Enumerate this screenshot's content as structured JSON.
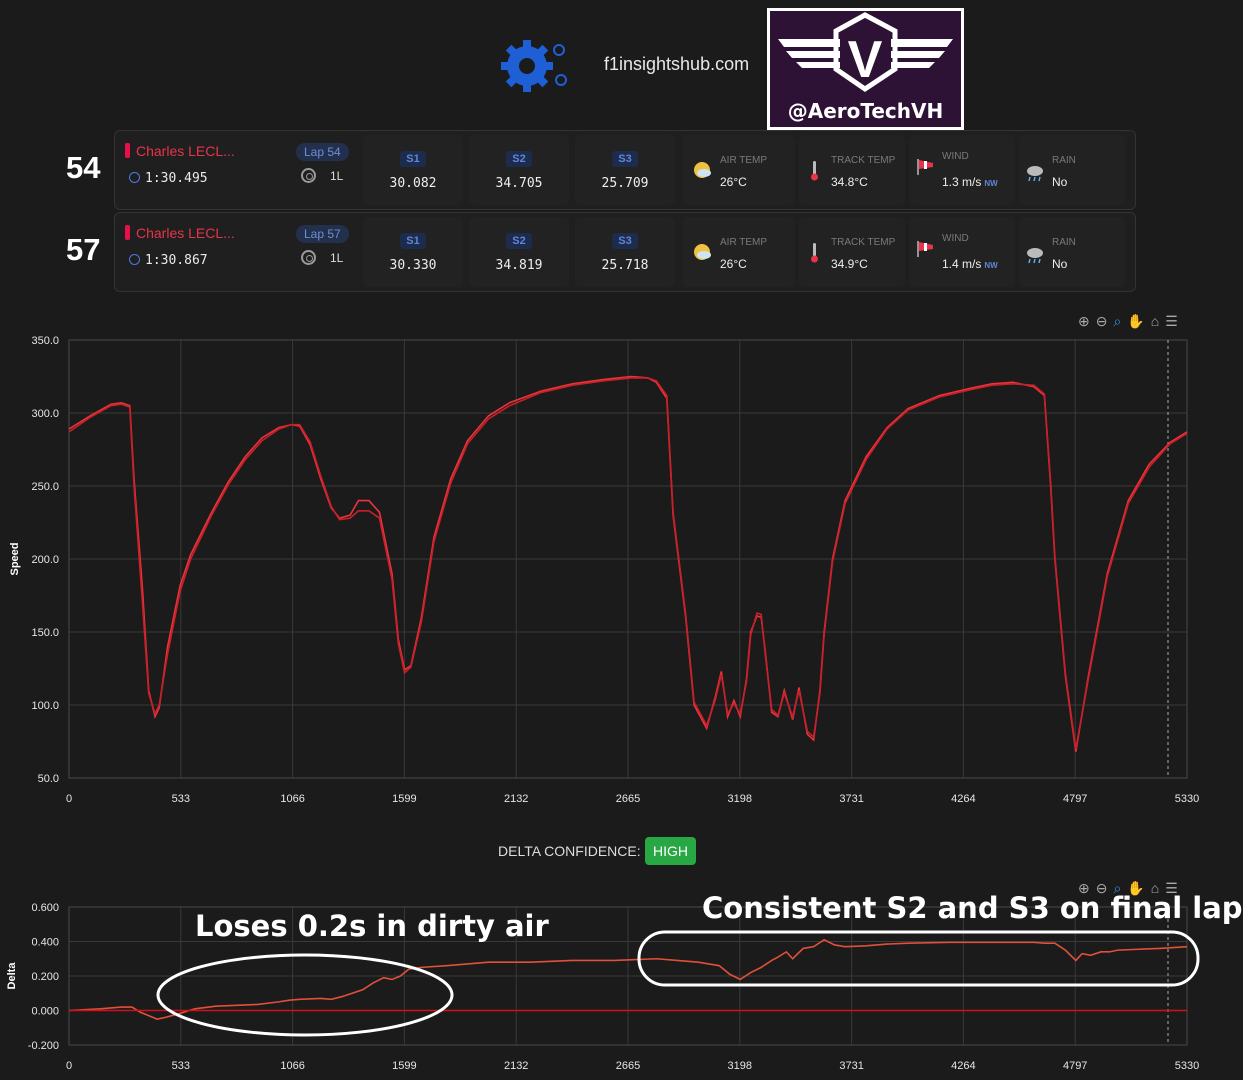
{
  "header": {
    "site": "f1insightshub.com",
    "brand_handle": "@AeroTechVH",
    "brand_letter": "V"
  },
  "laps": [
    {
      "lap_number": "54",
      "driver": "Charles LECL...",
      "lap_time": "1:30.495",
      "lap_badge": "Lap 54",
      "tyre": "1L",
      "sectors": [
        {
          "label": "S1",
          "time": "30.082"
        },
        {
          "label": "S2",
          "time": "34.705"
        },
        {
          "label": "S3",
          "time": "25.709"
        }
      ],
      "weather": {
        "air_temp_label": "AIR TEMP",
        "air_temp": "26°C",
        "track_temp_label": "TRACK TEMP",
        "track_temp": "34.8°C",
        "wind_label": "WIND",
        "wind": "1.3 m/s",
        "wind_dir": "NW",
        "rain_label": "RAIN",
        "rain": "No"
      }
    },
    {
      "lap_number": "57",
      "driver": "Charles LECL...",
      "lap_time": "1:30.867",
      "lap_badge": "Lap 57",
      "tyre": "1L",
      "sectors": [
        {
          "label": "S1",
          "time": "30.330"
        },
        {
          "label": "S2",
          "time": "34.819"
        },
        {
          "label": "S3",
          "time": "25.718"
        }
      ],
      "weather": {
        "air_temp_label": "AIR TEMP",
        "air_temp": "26°C",
        "track_temp_label": "TRACK TEMP",
        "track_temp": "34.9°C",
        "wind_label": "WIND",
        "wind": "1.4 m/s",
        "wind_dir": "NW",
        "rain_label": "RAIN",
        "rain": "No"
      }
    }
  ],
  "delta_confidence": {
    "label": "DELTA CONFIDENCE:",
    "value": "HIGH"
  },
  "annotations": {
    "left": "Loses 0.2s in dirty air",
    "right": "Consistent S2 and S3 on final lap"
  },
  "colors": {
    "line": "#e8343a",
    "confidence": "#28a745",
    "accent": "#5f86d8"
  },
  "chart_data": [
    {
      "type": "line",
      "ylabel": "Speed",
      "xlabel": "",
      "xlim": [
        0,
        5330
      ],
      "ylim": [
        50,
        350
      ],
      "xticks": [
        "0",
        "533",
        "1066",
        "1599",
        "2132",
        "2665",
        "3198",
        "3731",
        "4264",
        "4797",
        "5330"
      ],
      "yticks": [
        "50.0",
        "100.0",
        "150.0",
        "200.0",
        "250.0",
        "300.0",
        "350.0"
      ],
      "grid": true,
      "series": [
        {
          "x": [
            0,
            100,
            200,
            250,
            290,
            310,
            350,
            380,
            410,
            430,
            470,
            530,
            580,
            680,
            760,
            840,
            920,
            1000,
            1060,
            1100,
            1150,
            1200,
            1250,
            1290,
            1340,
            1380,
            1430,
            1480,
            1540,
            1570,
            1600,
            1630,
            1680,
            1740,
            1820,
            1900,
            2000,
            2100,
            2250,
            2400,
            2550,
            2680,
            2760,
            2800,
            2850,
            2880,
            2940,
            2980,
            3040,
            3080,
            3110,
            3140,
            3170,
            3200,
            3230,
            3250,
            3280,
            3300,
            3320,
            3350,
            3380,
            3410,
            3450,
            3480,
            3520,
            3550,
            3580,
            3600,
            3640,
            3700,
            3800,
            3900,
            4000,
            4150,
            4300,
            4400,
            4500,
            4600,
            4650,
            4680,
            4700,
            4750,
            4800,
            4860,
            4950,
            5050,
            5150,
            5250,
            5330
          ],
          "y": [
            289,
            298,
            306,
            307,
            305,
            255,
            180,
            110,
            92,
            98,
            140,
            182,
            203,
            232,
            253,
            270,
            283,
            290,
            292,
            291,
            278,
            255,
            235,
            228,
            230,
            240,
            240,
            232,
            190,
            145,
            124,
            127,
            160,
            215,
            255,
            281,
            298,
            307,
            315,
            320,
            323,
            325,
            324,
            321,
            310,
            230,
            160,
            100,
            84,
            105,
            123,
            92,
            103,
            92,
            118,
            150,
            161,
            160,
            136,
            95,
            92,
            110,
            90,
            112,
            80,
            76,
            110,
            150,
            200,
            240,
            270,
            290,
            303,
            312,
            317,
            320,
            321,
            318,
            312,
            250,
            200,
            120,
            68,
            120,
            190,
            240,
            265,
            280,
            287
          ]
        },
        {
          "x": [
            0,
            100,
            200,
            250,
            290,
            310,
            350,
            380,
            410,
            430,
            470,
            530,
            580,
            680,
            760,
            840,
            920,
            1000,
            1060,
            1100,
            1150,
            1200,
            1250,
            1290,
            1340,
            1380,
            1430,
            1480,
            1540,
            1570,
            1600,
            1630,
            1680,
            1740,
            1820,
            1900,
            2000,
            2100,
            2250,
            2400,
            2550,
            2680,
            2760,
            2800,
            2850,
            2880,
            2940,
            2980,
            3040,
            3080,
            3110,
            3140,
            3170,
            3200,
            3230,
            3250,
            3280,
            3300,
            3320,
            3350,
            3380,
            3410,
            3450,
            3480,
            3520,
            3550,
            3580,
            3600,
            3640,
            3700,
            3800,
            3900,
            4000,
            4150,
            4300,
            4400,
            4500,
            4600,
            4650,
            4680,
            4700,
            4750,
            4800,
            4860,
            4950,
            5050,
            5150,
            5250,
            5330
          ],
          "y": [
            287,
            297,
            305,
            306,
            304,
            250,
            170,
            108,
            94,
            100,
            135,
            178,
            200,
            230,
            251,
            268,
            281,
            289,
            292,
            292,
            280,
            257,
            236,
            227,
            228,
            233,
            233,
            228,
            186,
            142,
            122,
            126,
            157,
            212,
            252,
            279,
            296,
            305,
            314,
            319,
            322,
            324,
            324,
            322,
            312,
            232,
            162,
            102,
            86,
            103,
            121,
            94,
            101,
            94,
            116,
            148,
            163,
            162,
            134,
            97,
            93,
            108,
            92,
            110,
            82,
            78,
            108,
            148,
            198,
            238,
            268,
            289,
            302,
            311,
            316,
            319,
            320,
            319,
            313,
            252,
            202,
            122,
            70,
            118,
            188,
            238,
            263,
            279,
            286
          ]
        }
      ]
    },
    {
      "type": "line",
      "ylabel": "Delta",
      "xlabel": "",
      "xlim": [
        0,
        5330
      ],
      "ylim": [
        -0.2,
        0.6
      ],
      "xticks": [
        "0",
        "533",
        "1066",
        "1599",
        "2132",
        "2665",
        "3198",
        "3731",
        "4264",
        "4797",
        "5330"
      ],
      "yticks": [
        "-0.200",
        "0.000",
        "0.200",
        "0.400",
        "0.600"
      ],
      "grid": true,
      "series": [
        {
          "x": [
            0,
            150,
            250,
            300,
            340,
            380,
            420,
            460,
            520,
            600,
            700,
            800,
            900,
            1000,
            1050,
            1100,
            1200,
            1250,
            1300,
            1400,
            1450,
            1500,
            1540,
            1580,
            1620,
            1680,
            1800,
            2000,
            2200,
            2400,
            2600,
            2800,
            2900,
            3000,
            3050,
            3100,
            3150,
            3200,
            3250,
            3300,
            3350,
            3380,
            3420,
            3450,
            3500,
            3550,
            3600,
            3650,
            3700,
            3800,
            3900,
            4000,
            4200,
            4400,
            4600,
            4650,
            4700,
            4750,
            4800,
            4830,
            4870,
            4920,
            4960,
            5000,
            5100,
            5200,
            5330
          ],
          "y": [
            0,
            0.01,
            0.02,
            0.02,
            -0.01,
            -0.03,
            -0.05,
            -0.04,
            -0.02,
            0.01,
            0.025,
            0.03,
            0.035,
            0.05,
            0.06,
            0.065,
            0.07,
            0.065,
            0.08,
            0.12,
            0.16,
            0.19,
            0.18,
            0.2,
            0.24,
            0.25,
            0.26,
            0.28,
            0.28,
            0.29,
            0.29,
            0.3,
            0.29,
            0.28,
            0.27,
            0.26,
            0.21,
            0.18,
            0.22,
            0.25,
            0.29,
            0.31,
            0.34,
            0.3,
            0.36,
            0.37,
            0.41,
            0.38,
            0.37,
            0.375,
            0.385,
            0.39,
            0.395,
            0.395,
            0.395,
            0.39,
            0.39,
            0.35,
            0.29,
            0.33,
            0.32,
            0.34,
            0.34,
            0.35,
            0.355,
            0.36,
            0.37
          ]
        },
        {
          "x": [
            0,
            5330
          ],
          "y": [
            0,
            0
          ]
        }
      ]
    }
  ]
}
